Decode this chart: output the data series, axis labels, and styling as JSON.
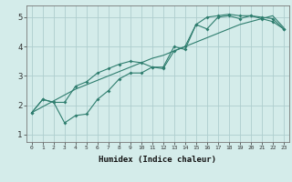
{
  "xlabel": "Humidex (Indice chaleur)",
  "ylabel": "",
  "background_color": "#d4ecea",
  "grid_color": "#aecece",
  "line_color": "#2e7d6e",
  "xlim": [
    -0.5,
    23.5
  ],
  "ylim": [
    0.75,
    5.4
  ],
  "x": [
    0,
    1,
    2,
    3,
    4,
    5,
    6,
    7,
    8,
    9,
    10,
    11,
    12,
    13,
    14,
    15,
    16,
    17,
    18,
    19,
    20,
    21,
    22,
    23
  ],
  "line_jagged1": [
    1.75,
    2.2,
    2.1,
    2.1,
    2.65,
    2.8,
    3.1,
    3.25,
    3.4,
    3.5,
    3.45,
    3.3,
    3.3,
    4.0,
    3.9,
    4.75,
    5.0,
    5.05,
    5.1,
    5.05,
    5.05,
    5.0,
    4.95,
    4.6
  ],
  "line_jagged2": [
    1.75,
    2.2,
    2.1,
    1.4,
    1.65,
    1.7,
    2.2,
    2.5,
    2.9,
    3.1,
    3.1,
    3.3,
    3.25,
    3.85,
    4.0,
    4.75,
    4.6,
    5.0,
    5.05,
    4.95,
    5.05,
    4.95,
    4.85,
    4.6
  ],
  "line_straight": [
    1.75,
    1.95,
    2.15,
    2.35,
    2.55,
    2.7,
    2.85,
    3.0,
    3.15,
    3.3,
    3.45,
    3.6,
    3.7,
    3.85,
    4.0,
    4.15,
    4.3,
    4.45,
    4.6,
    4.75,
    4.85,
    4.95,
    5.05,
    4.65
  ],
  "yticks": [
    1,
    2,
    3,
    4,
    5
  ],
  "xticks": [
    0,
    1,
    2,
    3,
    4,
    5,
    6,
    7,
    8,
    9,
    10,
    11,
    12,
    13,
    14,
    15,
    16,
    17,
    18,
    19,
    20,
    21,
    22,
    23
  ]
}
